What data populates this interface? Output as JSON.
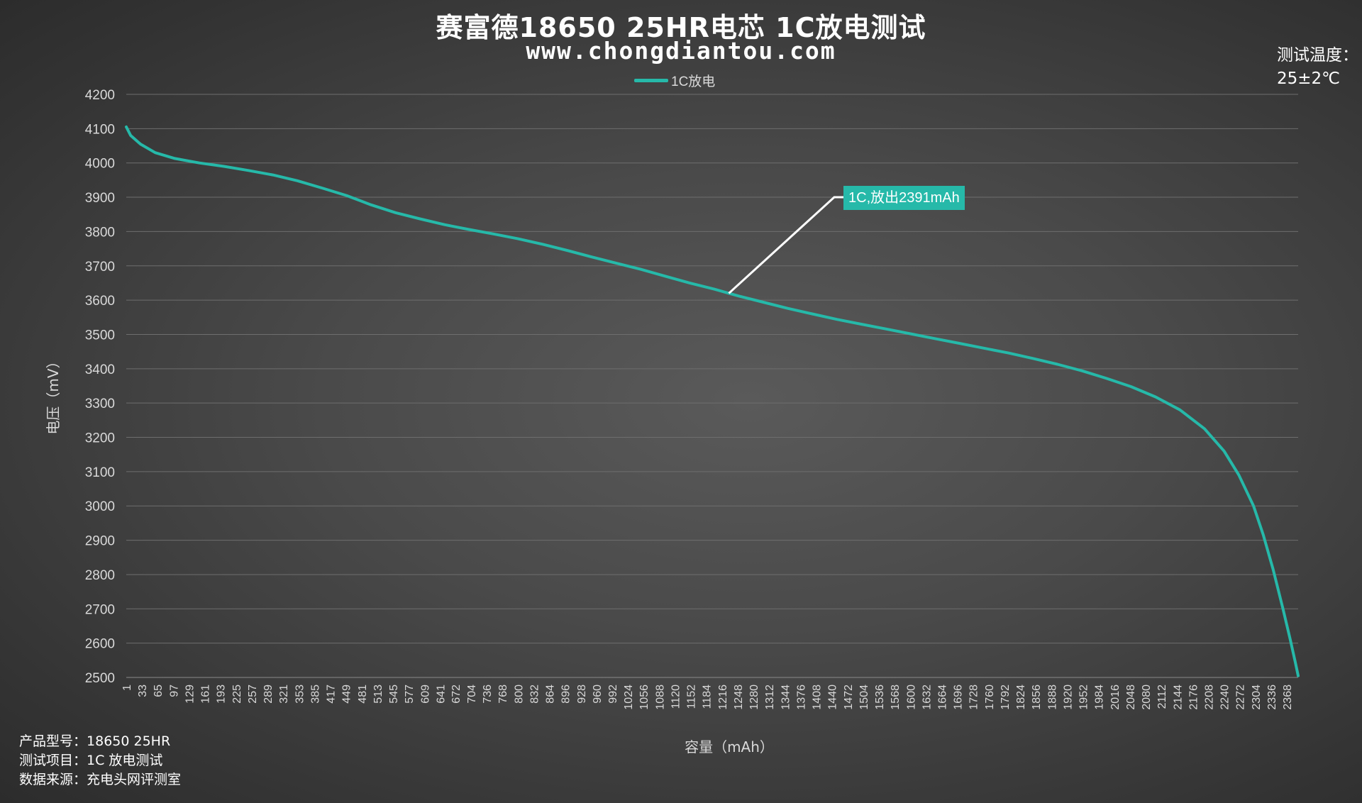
{
  "header": {
    "title": "赛富德18650 25HR电芯  1C放电测试",
    "subtitle": "www.chongdiantou.com"
  },
  "temperature": {
    "label": "测试温度：",
    "value": "25±2℃"
  },
  "info": {
    "model_label": "产品型号：",
    "model_value": "18650 25HR",
    "item_label": "测试项目：",
    "item_value": "1C 放电测试",
    "source_label": "数据来源：",
    "source_value": "充电头网评测室"
  },
  "colors": {
    "series": "#26b9a9",
    "grid": "#6e6e6e",
    "text": "#d9d9d9",
    "annotation_bg": "#26b9a9"
  },
  "chart_data": {
    "type": "line",
    "title": "赛富德18650 25HR电芯  1C放电测试",
    "xlabel": "容量（mAh）",
    "ylabel": "电压（mV）",
    "ylim": [
      2500,
      4200
    ],
    "y_ticks": [
      2500,
      2600,
      2700,
      2800,
      2900,
      3000,
      3100,
      3200,
      3300,
      3400,
      3500,
      3600,
      3700,
      3800,
      3900,
      4000,
      4100,
      4200
    ],
    "x_range": [
      1,
      2391
    ],
    "x_ticks": [
      1,
      33,
      65,
      97,
      129,
      161,
      193,
      225,
      257,
      289,
      321,
      353,
      385,
      417,
      449,
      481,
      513,
      545,
      577,
      609,
      641,
      672,
      704,
      736,
      768,
      800,
      832,
      864,
      896,
      928,
      960,
      992,
      1024,
      1056,
      1088,
      1120,
      1152,
      1184,
      1216,
      1248,
      1280,
      1312,
      1344,
      1376,
      1408,
      1440,
      1472,
      1504,
      1536,
      1568,
      1600,
      1632,
      1664,
      1696,
      1728,
      1760,
      1792,
      1824,
      1856,
      1888,
      1920,
      1952,
      1984,
      2016,
      2048,
      2080,
      2112,
      2144,
      2176,
      2208,
      2240,
      2272,
      2304,
      2336,
      2368
    ],
    "grid": true,
    "legend_position": "top-center",
    "series": [
      {
        "name": "1C放电",
        "x": [
          1,
          10,
          30,
          60,
          100,
          150,
          200,
          250,
          300,
          350,
          400,
          450,
          500,
          550,
          600,
          650,
          700,
          750,
          800,
          850,
          900,
          950,
          1000,
          1050,
          1100,
          1150,
          1200,
          1230,
          1250,
          1300,
          1350,
          1400,
          1450,
          1500,
          1550,
          1600,
          1650,
          1700,
          1750,
          1800,
          1850,
          1900,
          1950,
          2000,
          2050,
          2100,
          2150,
          2200,
          2240,
          2270,
          2300,
          2320,
          2340,
          2360,
          2375,
          2385,
          2391
        ],
        "y": [
          4105,
          4080,
          4055,
          4030,
          4013,
          4000,
          3990,
          3978,
          3965,
          3948,
          3927,
          3905,
          3878,
          3855,
          3837,
          3820,
          3806,
          3793,
          3779,
          3763,
          3745,
          3726,
          3708,
          3690,
          3670,
          3650,
          3632,
          3620,
          3612,
          3594,
          3576,
          3560,
          3544,
          3530,
          3516,
          3502,
          3488,
          3474,
          3460,
          3446,
          3430,
          3413,
          3394,
          3372,
          3348,
          3318,
          3280,
          3225,
          3160,
          3090,
          3000,
          2915,
          2815,
          2700,
          2610,
          2545,
          2505
        ]
      }
    ],
    "annotations": [
      {
        "text": "1C,放出2391mAh",
        "x": 1230,
        "y": 3620
      }
    ]
  }
}
